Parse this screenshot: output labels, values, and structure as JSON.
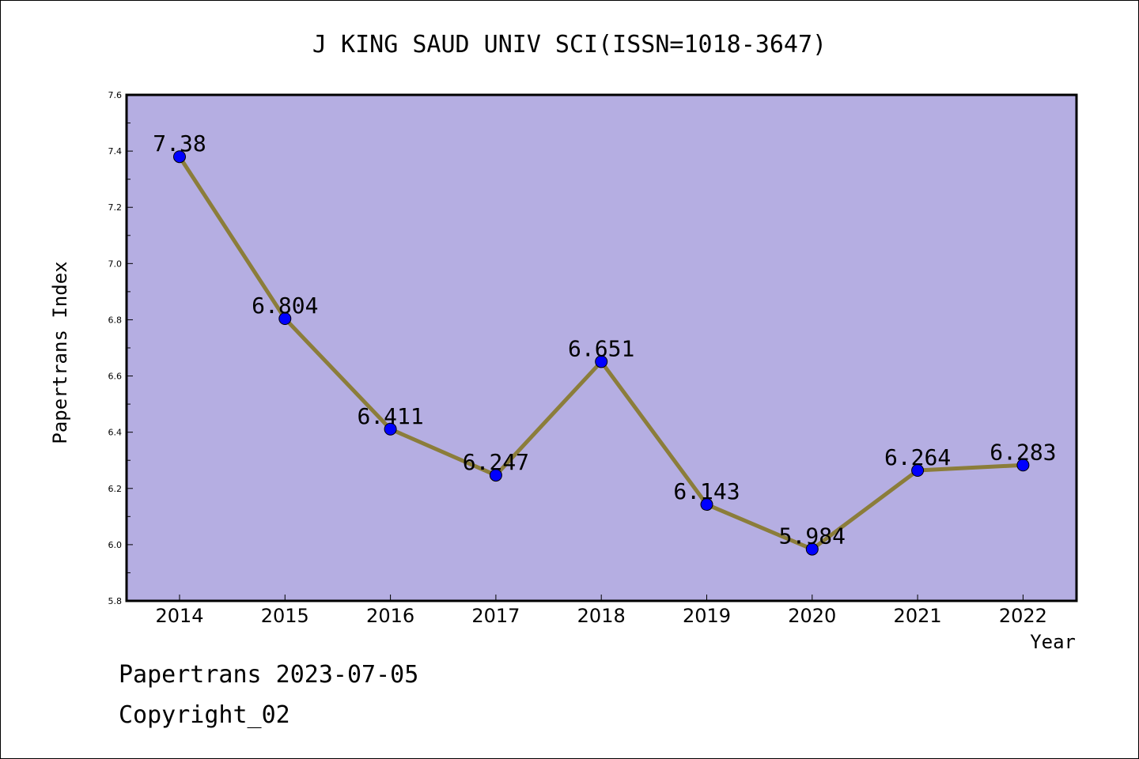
{
  "chart_data": {
    "type": "line",
    "title": "J KING SAUD UNIV SCI(ISSN=1018-3647)",
    "xlabel": "Year",
    "ylabel": "Papertrans Index",
    "categories": [
      "2014",
      "2015",
      "2016",
      "2017",
      "2018",
      "2019",
      "2020",
      "2021",
      "2022"
    ],
    "series": [
      {
        "values": [
          7.38,
          6.804,
          6.411,
          6.247,
          6.651,
          6.143,
          5.984,
          6.264,
          6.283
        ]
      }
    ],
    "data_labels": [
      "7.38",
      "6.804",
      "6.411",
      "6.247",
      "6.651",
      "6.143",
      "5.984",
      "6.264",
      "6.283"
    ],
    "ylim": [
      5.8,
      7.6
    ],
    "yticks": [
      "5.8",
      "6.0",
      "6.2",
      "6.4",
      "6.6",
      "6.8",
      "7.0",
      "7.2",
      "7.4",
      "7.6"
    ],
    "grid": false,
    "colors": {
      "plot_background": "#b5aee2",
      "line": "#8b7d3a",
      "marker": "#0000ff"
    }
  },
  "footer": {
    "line1": "Papertrans 2023-07-05",
    "line2": "Copyright_02"
  }
}
